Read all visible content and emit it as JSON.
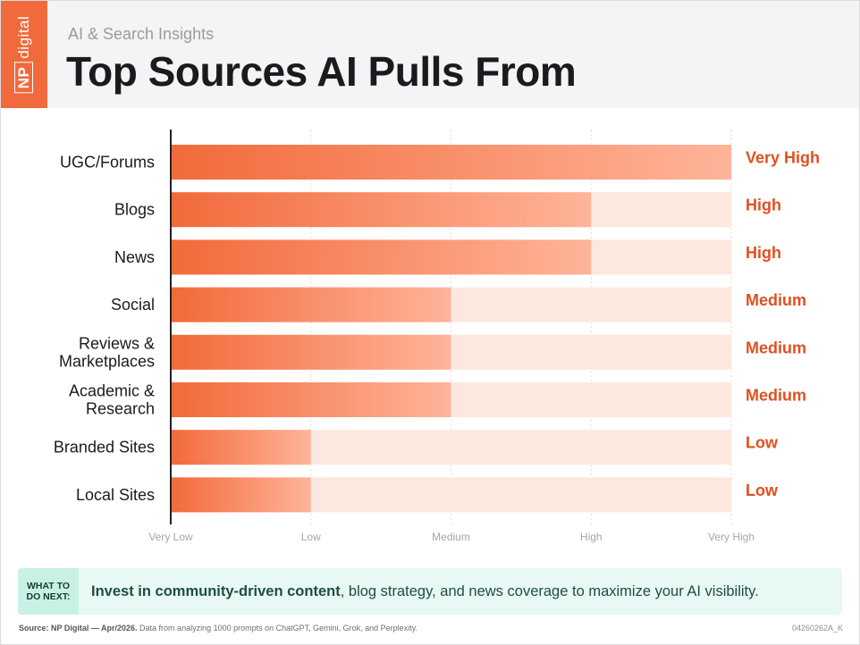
{
  "header": {
    "logo_np": "NP",
    "logo_word": "digital",
    "subtitle": "AI & Search Insights",
    "title": "Top Sources AI Pulls From"
  },
  "chart_data": {
    "type": "bar",
    "orientation": "horizontal",
    "title": "Top Sources AI Pulls From",
    "categories": [
      "UGC/Forums",
      "Blogs",
      "News",
      "Social",
      "Reviews & Marketplaces",
      "Academic & Research",
      "Branded Sites",
      "Local Sites"
    ],
    "category_lines": [
      [
        "UGC/Forums"
      ],
      [
        "Blogs"
      ],
      [
        "News"
      ],
      [
        "Social"
      ],
      [
        "Reviews &",
        "Marketplaces"
      ],
      [
        "Academic &",
        "Research"
      ],
      [
        "Branded Sites"
      ],
      [
        "Local Sites"
      ]
    ],
    "values": [
      4,
      3,
      3,
      2,
      2,
      2,
      1,
      1
    ],
    "value_labels": [
      "Very High",
      "High",
      "High",
      "Medium",
      "Medium",
      "Medium",
      "Low",
      "Low"
    ],
    "x_ticks": [
      "Very Low",
      "Low",
      "Medium",
      "High",
      "Very High"
    ],
    "xlim": [
      0,
      4
    ],
    "grid": true,
    "legend": "none",
    "colors": {
      "bar_start": "#f26a3a",
      "bar_end": "#ffb49a",
      "track": "#fde8e0",
      "value_label": "#e0501f",
      "axis": "#222222",
      "grid": "#dddddd"
    }
  },
  "cta": {
    "tag_line1": "WHAT TO",
    "tag_line2": "DO NEXT:",
    "strong": "Invest in community-driven content",
    "rest": ", blog strategy, and news coverage to maximize your AI visibility."
  },
  "footer": {
    "source_bold": "Source: NP Digital — Apr/2026.",
    "source_rest": " Data from analyzing 1000 prompts on ChatGPT, Gemini, Grok, and Perplexity.",
    "doc_id": "04260262A_K"
  }
}
